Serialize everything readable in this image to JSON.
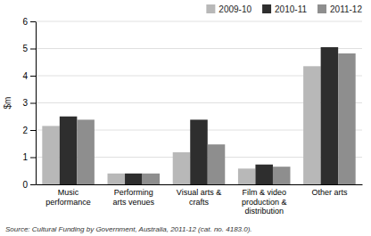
{
  "chart_data": {
    "type": "bar",
    "categories": [
      "Music\nperformance",
      "Performing\narts venues",
      "Visual arts &\ncrafts",
      "Film & video\nproduction &\ndistribution",
      "Other arts"
    ],
    "series": [
      {
        "name": "2009-10",
        "color": "#b8b8b8",
        "values": [
          2.15,
          0.4,
          1.18,
          0.58,
          4.35
        ]
      },
      {
        "name": "2010-11",
        "color": "#2e2e2e",
        "values": [
          2.5,
          0.4,
          2.38,
          0.73,
          5.05
        ]
      },
      {
        "name": "2011-12",
        "color": "#8e8e8e",
        "values": [
          2.38,
          0.4,
          1.47,
          0.65,
          4.82
        ]
      }
    ],
    "ylabel": "$m",
    "ylim": [
      0,
      6
    ],
    "yticks": [
      0,
      1,
      2,
      3,
      4,
      5,
      6
    ],
    "grid": true,
    "legend": "upper right",
    "source": "Source: Cultural Funding by Government, Australia, 2011-12 (cat.  no.  4183.0)."
  }
}
